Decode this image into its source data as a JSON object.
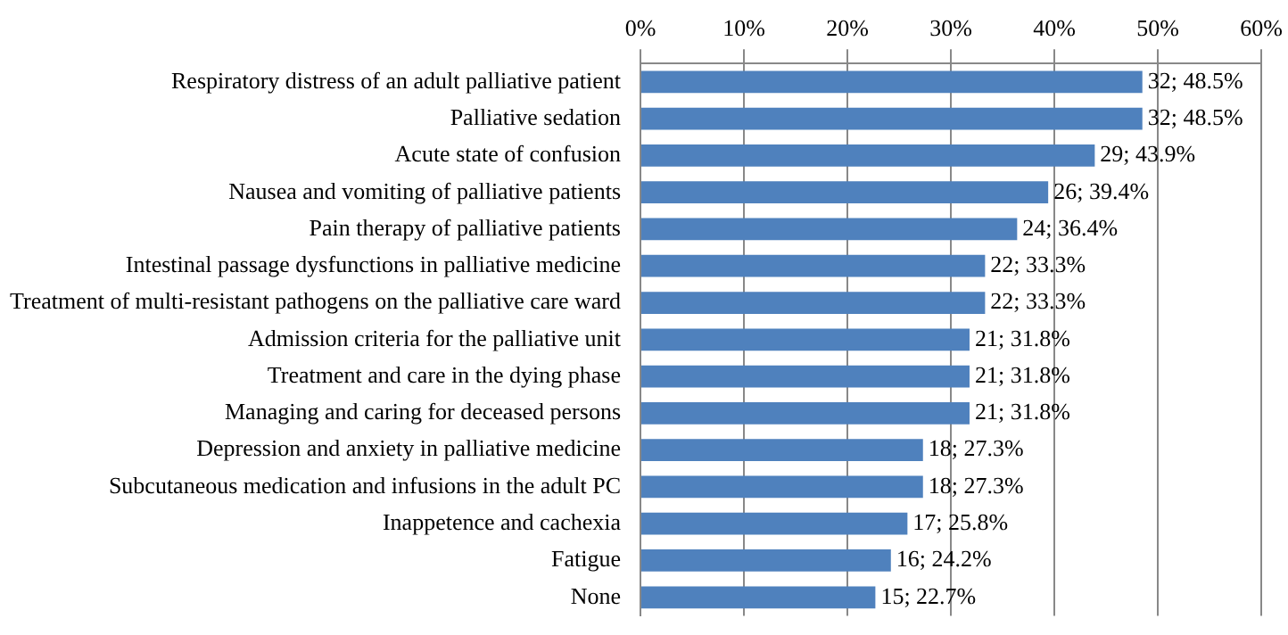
{
  "chart_data": {
    "type": "bar",
    "orientation": "horizontal",
    "categories": [
      "Respiratory distress of an adult palliative patient",
      "Palliative sedation",
      "Acute state of confusion",
      "Nausea and vomiting of palliative patients",
      "Pain therapy of palliative patients",
      "Intestinal passage dysfunctions in palliative medicine",
      "Treatment of multi-resistant pathogens on the palliative care ward",
      "Admission criteria for the palliative unit",
      "Treatment and care in the dying phase",
      "Managing and caring for deceased persons",
      "Depression and anxiety in palliative medicine",
      "Subcutaneous medication and infusions in the adult PC",
      "Inappetence and cachexia",
      "Fatigue",
      "None"
    ],
    "values": [
      48.5,
      48.5,
      43.9,
      39.4,
      36.4,
      33.3,
      33.3,
      31.8,
      31.8,
      31.8,
      27.3,
      27.3,
      25.8,
      24.2,
      22.7
    ],
    "value_labels": [
      "32; 48.5%",
      "32; 48.5%",
      "29; 43.9%",
      "26; 39.4%",
      "24; 36.4%",
      "22; 33.3%",
      "22; 33.3%",
      "21; 31.8%",
      "21; 31.8%",
      "21; 31.8%",
      "18; 27.3%",
      "18; 27.3%",
      "17; 25.8%",
      "16; 24.2%",
      "15; 22.7%"
    ],
    "color": "#4f81bd",
    "xlim": [
      0,
      60
    ],
    "xticks": [
      {
        "value": 0,
        "label": "0%"
      },
      {
        "value": 10,
        "label": "10%"
      },
      {
        "value": 20,
        "label": "20%"
      },
      {
        "value": 30,
        "label": "30%"
      },
      {
        "value": 40,
        "label": "40%"
      },
      {
        "value": 50,
        "label": "50%"
      },
      {
        "value": 60,
        "label": "60%"
      }
    ],
    "grid": "x",
    "legend": false
  }
}
